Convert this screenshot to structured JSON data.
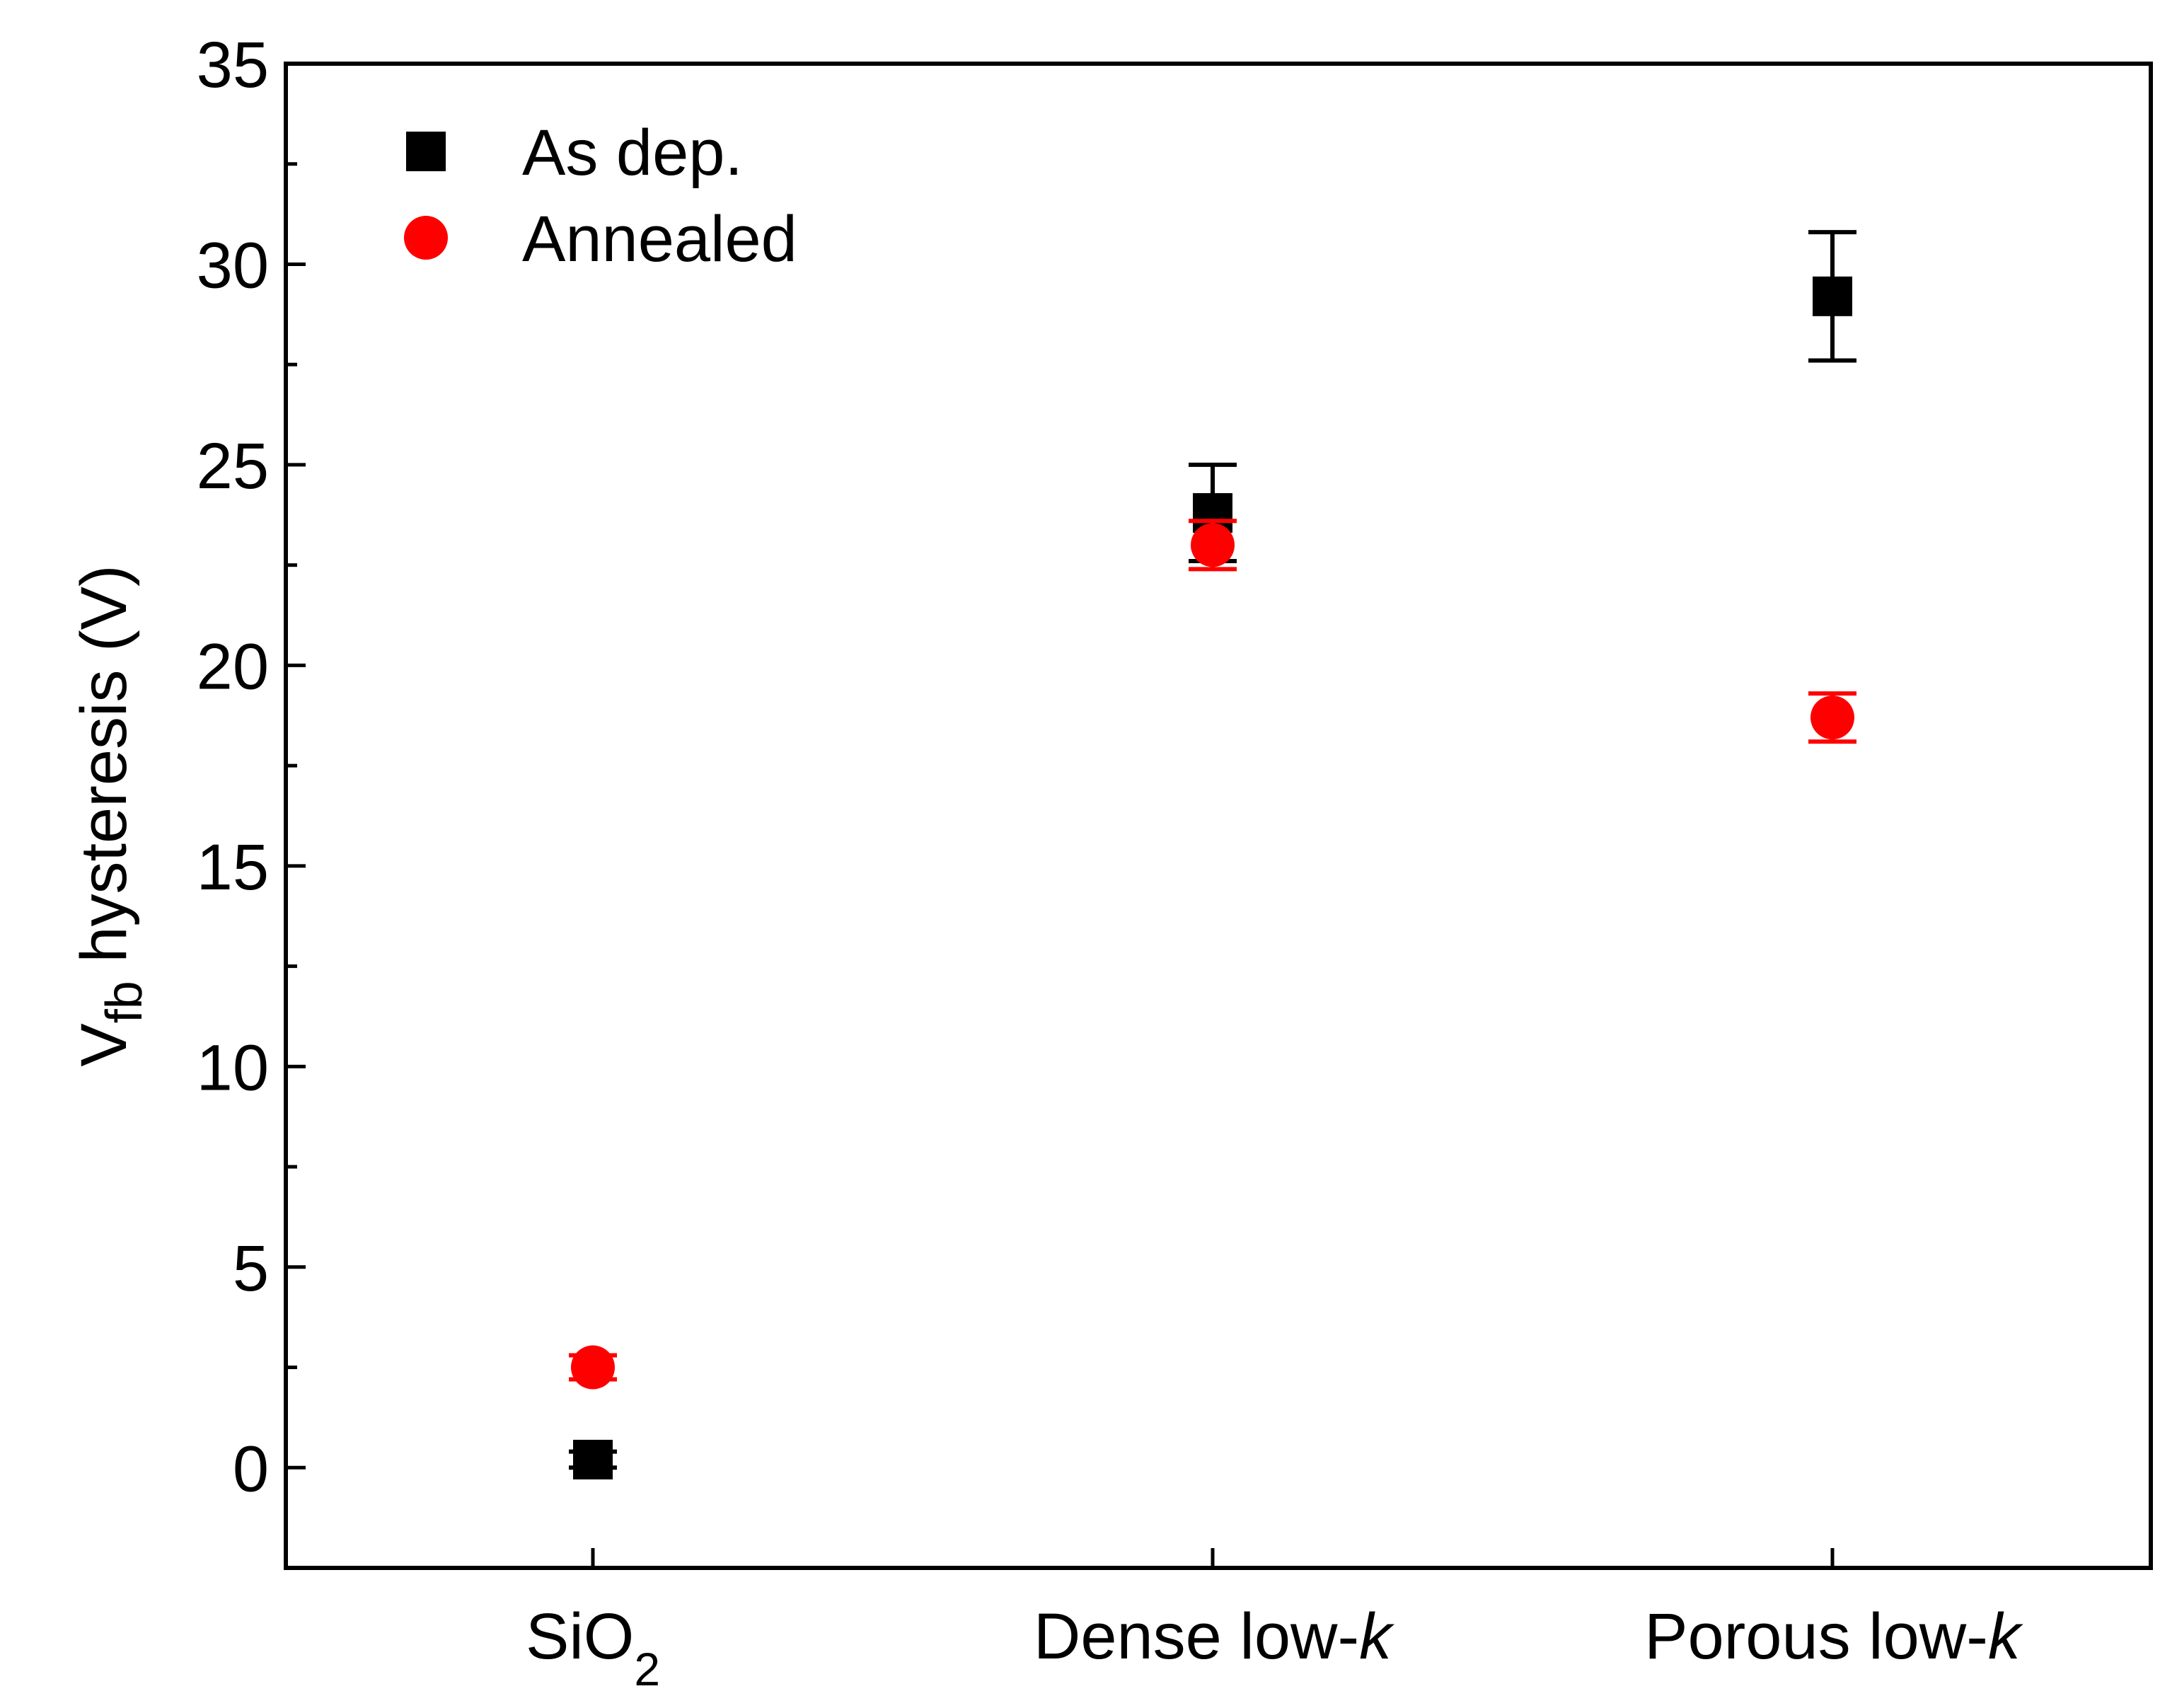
{
  "chart_data": {
    "type": "scatter",
    "title": "",
    "xlabel": "",
    "ylabel": {
      "main": "V",
      "subscript": "fb",
      "rest": " hysteresis (V)"
    },
    "categories": [
      {
        "main": "SiO",
        "sub": "2",
        "italic": ""
      },
      {
        "main": "Dense low-",
        "sub": "",
        "italic": "k"
      },
      {
        "main": "Porous low-",
        "sub": "",
        "italic": "k"
      }
    ],
    "ylim": [
      -2.5,
      35
    ],
    "yticks_major": [
      0,
      5,
      10,
      15,
      20,
      25,
      30,
      35
    ],
    "yticks_labels": [
      "0",
      "5",
      "10",
      "15",
      "20",
      "25",
      "30",
      "35"
    ],
    "yticks_minor": [
      2.5,
      7.5,
      12.5,
      17.5,
      22.5,
      27.5,
      32.5
    ],
    "grid": false,
    "legend_position": "top-left",
    "series": [
      {
        "name": "As dep.",
        "marker": "square",
        "color": "#000000",
        "values": [
          0.2,
          23.8,
          29.2
        ],
        "errors": [
          0.2,
          1.2,
          1.6
        ]
      },
      {
        "name": "Annealed",
        "marker": "circle",
        "color": "#ff0000",
        "values": [
          2.5,
          23.0,
          18.7
        ],
        "errors": [
          0.3,
          0.6,
          0.6
        ]
      }
    ]
  }
}
